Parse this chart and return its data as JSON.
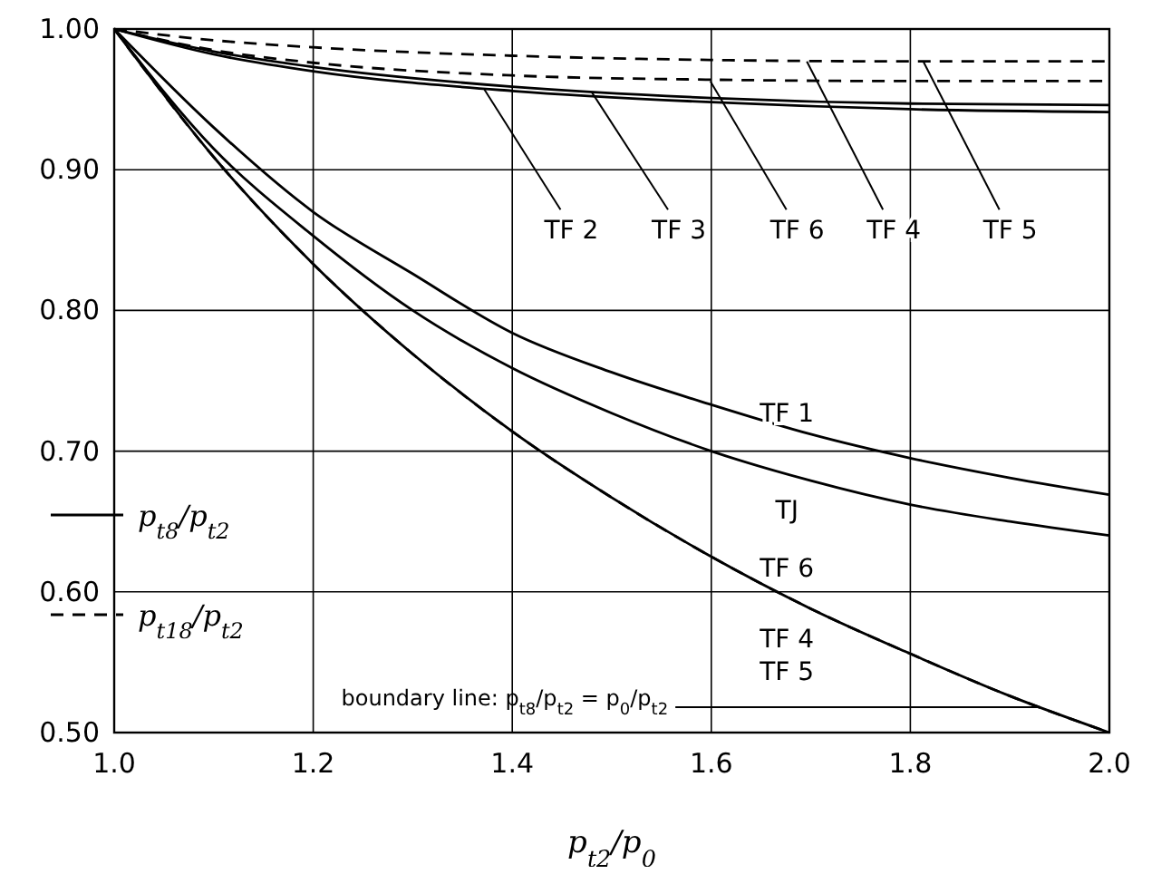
{
  "chart_data": {
    "type": "line",
    "xlabel": "p$_{t2}$/p$_{0}$",
    "xlim": [
      1.0,
      2.0
    ],
    "ylim": [
      0.5,
      1.0
    ],
    "xticks": [
      {
        "value": 1.0,
        "label": "1.0"
      },
      {
        "value": 1.2,
        "label": "1.2"
      },
      {
        "value": 1.4,
        "label": "1.4"
      },
      {
        "value": 1.6,
        "label": "1.6"
      },
      {
        "value": 1.8,
        "label": "1.8"
      },
      {
        "value": 2.0,
        "label": "2.0"
      }
    ],
    "yticks": [
      {
        "value": 0.5,
        "label": "0.50"
      },
      {
        "value": 0.6,
        "label": "0.60"
      },
      {
        "value": 0.7,
        "label": "0.70"
      },
      {
        "value": 0.8,
        "label": "0.80"
      },
      {
        "value": 0.9,
        "label": "0.90"
      },
      {
        "value": 1.0,
        "label": "1.00"
      }
    ],
    "grid": true,
    "legend": "bottom left",
    "marker": "none",
    "series": [
      {
        "name": "p$_{t8}$/p$_{t2}$",
        "color": "#000000",
        "line_style": "solid",
        "x": [
          1.0,
          1.1,
          1.2,
          1.3,
          1.4,
          1.5,
          1.6,
          1.7,
          1.8,
          1.9,
          2.0
        ],
        "values": [
          1.0,
          0.93,
          0.87,
          0.826,
          0.784,
          0.756,
          0.733,
          0.712,
          0.695,
          0.681,
          0.669
        ]
      },
      {
        "color": "#000000",
        "line_style": "solid",
        "x": [
          1.0,
          1.1,
          1.2,
          1.3,
          1.4,
          1.5,
          1.6,
          1.7,
          1.8,
          1.9,
          2.0
        ],
        "values": [
          1.0,
          0.915,
          0.853,
          0.8,
          0.759,
          0.727,
          0.7,
          0.679,
          0.662,
          0.65,
          0.64
        ]
      },
      {
        "color": "#000000",
        "line_style": "solid",
        "x": [
          1.0,
          1.1,
          1.2,
          1.3,
          1.4,
          1.5,
          1.6,
          1.7,
          1.8,
          1.9,
          2.0
        ],
        "values": [
          1.0,
          0.909,
          0.833,
          0.769,
          0.714,
          0.667,
          0.625,
          0.588,
          0.556,
          0.526,
          0.5
        ]
      },
      {
        "name": "p$_{t18}$/p$_{t2}$",
        "color": "#000000",
        "line_style": "dashed",
        "x": [
          1.0,
          1.1,
          1.2,
          1.3,
          1.4,
          1.5,
          1.6,
          1.7,
          1.8,
          1.9,
          2.0
        ],
        "values": [
          1.0,
          0.909,
          0.833,
          0.769,
          0.714,
          0.667,
          0.625,
          0.588,
          0.556,
          0.526,
          0.5
        ]
      },
      {
        "color": "#000000",
        "line_style": "solid",
        "x": [
          1.0,
          1.1,
          1.2,
          1.4,
          1.6,
          1.8,
          2.0
        ],
        "values": [
          1.0,
          0.984,
          0.973,
          0.959,
          0.951,
          0.947,
          0.946
        ]
      },
      {
        "color": "#000000",
        "line_style": "solid",
        "x": [
          1.0,
          1.1,
          1.2,
          1.4,
          1.6,
          1.8,
          2.0
        ],
        "values": [
          1.0,
          0.982,
          0.97,
          0.956,
          0.948,
          0.943,
          0.941
        ]
      },
      {
        "color": "#000000",
        "line_style": "dashed",
        "x": [
          1.0,
          1.1,
          1.2,
          1.4,
          1.6,
          1.8,
          2.0
        ],
        "values": [
          1.0,
          0.985,
          0.976,
          0.967,
          0.964,
          0.963,
          0.963
        ]
      },
      {
        "color": "#000000",
        "line_style": "dashed",
        "x": [
          1.0,
          1.1,
          1.2,
          1.4,
          1.6,
          1.8,
          2.0
        ],
        "values": [
          1.0,
          0.992,
          0.987,
          0.981,
          0.978,
          0.977,
          0.977
        ]
      }
    ],
    "annotations": [
      {
        "text": "TF 2",
        "x": 1.372,
        "y": 0.957
      },
      {
        "text": "TF 3",
        "x": 1.48,
        "y": 0.955
      },
      {
        "text": "TF 6",
        "x": 1.599,
        "y": 0.963
      },
      {
        "text": "TF 4",
        "x": 1.696,
        "y": 0.977
      },
      {
        "text": "TF 5",
        "x": 1.813,
        "y": 0.977
      },
      "TF 1",
      "TJ",
      "TF 6",
      "TF 4",
      "TF 5",
      {
        "text": "boundary line: p$_{t8}$/p$_{t2}$ = p$_{0}$/p$_{t2}$",
        "x": 1.93,
        "y": 0.518
      }
    ]
  }
}
